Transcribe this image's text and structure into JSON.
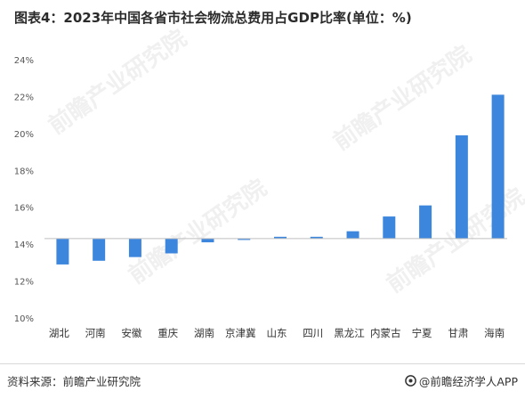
{
  "title": "图表4：2023年中国各省市社会物流总费用占GDP比率(单位：%)",
  "source": "资料来源：前瞻产业研究院",
  "brand": "@前瞻经济学人APP",
  "watermark": "前瞻产业研究院",
  "colors": {
    "bar": "#3d86dd",
    "axis": "#bfbfbf",
    "tick": "#555555"
  },
  "chart_data": {
    "type": "bar",
    "title": "图表4：2023年中国各省市社会物流总费用占GDP比率(单位：%)",
    "xlabel": "",
    "ylabel": "",
    "categories": [
      "湖北",
      "河南",
      "安徽",
      "重庆",
      "湖南",
      "京津冀",
      "山东",
      "四川",
      "黑龙江",
      "内蒙古",
      "宁夏",
      "甘肃",
      "海南"
    ],
    "values": [
      12.9,
      13.1,
      13.3,
      13.5,
      14.1,
      14.3,
      14.4,
      14.4,
      14.7,
      15.5,
      16.1,
      19.9,
      22.1
    ],
    "baseline": 14.3,
    "ylim": [
      10,
      24
    ],
    "yticks": [
      10,
      12,
      14,
      16,
      18,
      20,
      22,
      24
    ],
    "ytick_labels": [
      "10%",
      "12%",
      "14%",
      "16%",
      "18%",
      "20%",
      "22%",
      "24%"
    ],
    "grid": false,
    "legend": "none"
  }
}
